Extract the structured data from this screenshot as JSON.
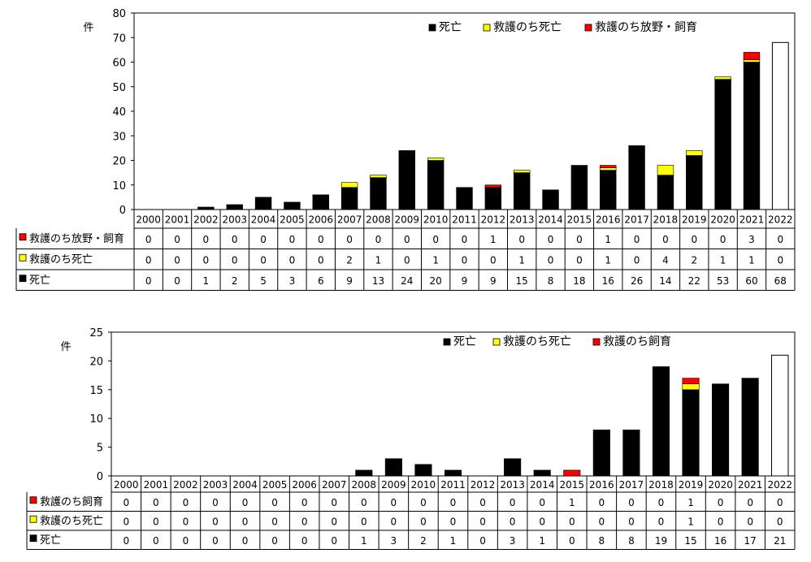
{
  "colors": {
    "death": "#000000",
    "rescue_death": "#ffff00",
    "rescue_release": "#ff0000",
    "projection": "#ffffff"
  },
  "chart_data": [
    {
      "type": "bar",
      "stacked": true,
      "ylabel": "件",
      "ylim": [
        0,
        80
      ],
      "yticks": [
        0,
        10,
        20,
        30,
        40,
        50,
        60,
        70,
        80
      ],
      "categories": [
        "2000",
        "2001",
        "2002",
        "2003",
        "2004",
        "2005",
        "2006",
        "2007",
        "2008",
        "2009",
        "2010",
        "2011",
        "2012",
        "2013",
        "2014",
        "2015",
        "2016",
        "2017",
        "2018",
        "2019",
        "2020",
        "2021",
        "2022"
      ],
      "legend": [
        "死亡",
        "救護のち死亡",
        "救護のち放野・飼育"
      ],
      "legend_position": "top-right",
      "series": [
        {
          "name": "死亡",
          "color": "#000000",
          "values": [
            0,
            0,
            1,
            2,
            5,
            3,
            6,
            9,
            13,
            24,
            20,
            9,
            9,
            15,
            8,
            18,
            16,
            26,
            14,
            22,
            53,
            60,
            68
          ]
        },
        {
          "name": "救護のち死亡",
          "color": "#ffff00",
          "values": [
            0,
            0,
            0,
            0,
            0,
            0,
            0,
            2,
            1,
            0,
            1,
            0,
            0,
            1,
            0,
            0,
            1,
            0,
            4,
            2,
            1,
            1,
            0
          ]
        },
        {
          "name": "救護のち放野・飼育",
          "color": "#ff0000",
          "values": [
            0,
            0,
            0,
            0,
            0,
            0,
            0,
            0,
            0,
            0,
            0,
            0,
            1,
            0,
            0,
            0,
            1,
            0,
            0,
            0,
            0,
            3,
            0
          ]
        }
      ],
      "table_rows": [
        "救護のち放野・飼育",
        "救護のち死亡",
        "死亡"
      ]
    },
    {
      "type": "bar",
      "stacked": true,
      "ylabel": "件",
      "ylim": [
        0,
        25
      ],
      "yticks": [
        0,
        5,
        10,
        15,
        20,
        25
      ],
      "categories": [
        "2000",
        "2001",
        "2002",
        "2003",
        "2004",
        "2005",
        "2006",
        "2007",
        "2008",
        "2009",
        "2010",
        "2011",
        "2012",
        "2013",
        "2014",
        "2015",
        "2016",
        "2017",
        "2018",
        "2019",
        "2020",
        "2021",
        "2022"
      ],
      "legend": [
        "死亡",
        "救護のち死亡",
        "救護のち飼育"
      ],
      "legend_position": "top-right",
      "series": [
        {
          "name": "死亡",
          "color": "#000000",
          "values": [
            0,
            0,
            0,
            0,
            0,
            0,
            0,
            0,
            1,
            3,
            2,
            1,
            0,
            3,
            1,
            0,
            8,
            8,
            19,
            15,
            16,
            17,
            21
          ]
        },
        {
          "name": "救護のち死亡",
          "color": "#ffff00",
          "values": [
            0,
            0,
            0,
            0,
            0,
            0,
            0,
            0,
            0,
            0,
            0,
            0,
            0,
            0,
            0,
            0,
            0,
            0,
            0,
            1,
            0,
            0,
            0
          ]
        },
        {
          "name": "救護のち飼育",
          "color": "#ff0000",
          "values": [
            0,
            0,
            0,
            0,
            0,
            0,
            0,
            0,
            0,
            0,
            0,
            0,
            0,
            0,
            0,
            1,
            0,
            0,
            0,
            1,
            0,
            0,
            0
          ]
        }
      ],
      "table_rows": [
        "救護のち飼育",
        "救護のち死亡",
        "死亡"
      ]
    }
  ]
}
